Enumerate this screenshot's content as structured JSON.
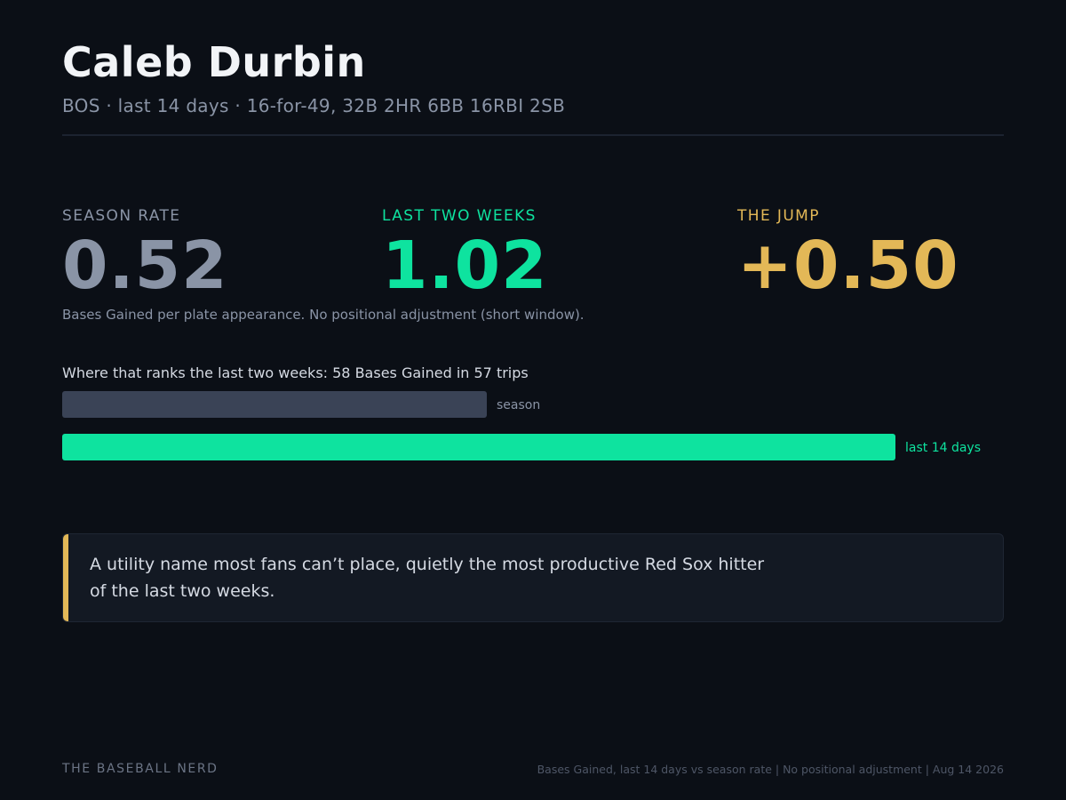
{
  "header": {
    "title": "Caleb Durbin",
    "subtitle": "BOS · last 14 days · 16-for-49, 32B 2HR 6BB 16RBI 2SB"
  },
  "stats": {
    "season": {
      "label": "SEASON RATE",
      "value": "0.52"
    },
    "recent": {
      "label": "LAST TWO WEEKS",
      "value": "1.02"
    },
    "jump": {
      "label": "THE JUMP",
      "value": "+0.50"
    }
  },
  "note": "Bases Gained per plate appearance. No positional adjustment (short window).",
  "ranks": {
    "heading": "Where that ranks the last two weeks: 58 Bases Gained in 57 trips",
    "bars": [
      {
        "label": "season",
        "value": 0.52
      },
      {
        "label": "last 14 days",
        "value": 1.02
      }
    ]
  },
  "quote": {
    "text": "A utility name most fans can’t place, quietly the most productive Red Sox hitter of the last two weeks."
  },
  "footer": {
    "brand": "THE BASEBALL NERD",
    "meta": "Bases Gained, last 14 days vs season rate | No positional adjustment | Aug 14 2026"
  },
  "colors": {
    "background": "#0b0f16",
    "season": "#8a94a6",
    "recent": "#0ee39f",
    "jump": "#e3b857"
  }
}
